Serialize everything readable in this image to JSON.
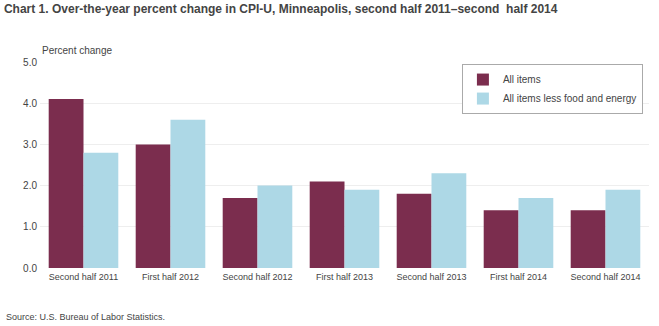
{
  "chart_data": {
    "type": "bar",
    "title": "Chart 1. Over-the-year percent change in CPI-U, Minneapolis, second half 2011–second  half 2014",
    "ylabel": "Percent change",
    "annotations": [
      "Source: U.S. Bureau of Labor Statistics."
    ],
    "categories": [
      "Second half 2011",
      "First half 2012",
      "Second half 2012",
      "First half 2013",
      "Second half 2013",
      "First half 2014",
      "Second half 2014"
    ],
    "series": [
      {
        "name": "All items",
        "color": "#7B2D4E",
        "values": [
          4.1,
          3.0,
          1.7,
          2.1,
          1.8,
          1.4,
          1.4
        ]
      },
      {
        "name": "All items less food and energy",
        "color": "#ADD8E6",
        "values": [
          2.8,
          3.6,
          2.0,
          1.9,
          2.3,
          1.7,
          1.9
        ]
      }
    ],
    "ylim": [
      0,
      5.0
    ],
    "yticks": [
      {
        "value": 0.0,
        "label": "0.0"
      },
      {
        "value": 1.0,
        "label": "1.0"
      },
      {
        "value": 2.0,
        "label": "2.0"
      },
      {
        "value": 3.0,
        "label": "3.0"
      },
      {
        "value": 4.0,
        "label": "4.0"
      },
      {
        "value": 5.0,
        "label": "5.0"
      }
    ],
    "grid": true,
    "legend": "upper right"
  }
}
